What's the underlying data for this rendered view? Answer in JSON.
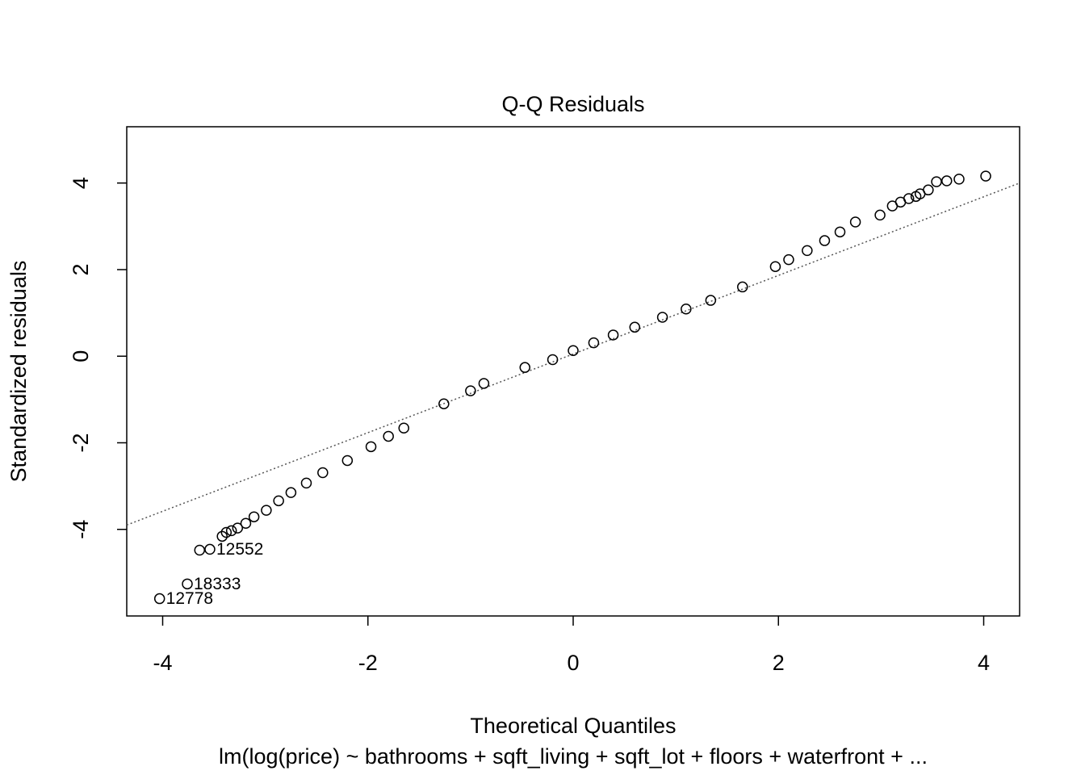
{
  "chart_data": {
    "type": "scatter",
    "title": "Q-Q Residuals",
    "x_label": "Theoretical Quantiles",
    "subtitle": "lm(log(price) ~ bathrooms + sqft_living + sqft_lot + floors + waterfront +  ...",
    "y_label": "Standardized residuals",
    "x": [
      -4.03,
      -3.76,
      -3.64,
      -3.54,
      -3.42,
      -3.38,
      -3.33,
      -3.27,
      -3.19,
      -3.11,
      -2.99,
      -2.87,
      -2.75,
      -2.6,
      -2.44,
      -2.2,
      -1.97,
      -1.8,
      -1.65,
      -1.26,
      -1.0,
      -0.87,
      -0.47,
      -0.2,
      0,
      0.2,
      0.39,
      0.6,
      0.87,
      1.1,
      1.34,
      1.65,
      1.97,
      2.1,
      2.28,
      2.45,
      2.6,
      2.75,
      2.99,
      3.11,
      3.19,
      3.27,
      3.34,
      3.38,
      3.46,
      3.54,
      3.64,
      3.76,
      4.02
    ],
    "y": [
      -5.6,
      -5.26,
      -4.48,
      -4.46,
      -4.16,
      -4.07,
      -4.03,
      -3.97,
      -3.86,
      -3.71,
      -3.56,
      -3.34,
      -3.15,
      -2.93,
      -2.69,
      -2.41,
      -2.09,
      -1.85,
      -1.66,
      -1.1,
      -0.8,
      -0.63,
      -0.26,
      -0.08,
      0.13,
      0.31,
      0.49,
      0.67,
      0.9,
      1.09,
      1.29,
      1.6,
      2.07,
      2.23,
      2.44,
      2.67,
      2.87,
      3.1,
      3.26,
      3.47,
      3.56,
      3.64,
      3.69,
      3.75,
      3.84,
      4.03,
      4.05,
      4.09,
      4.16
    ],
    "point_labels": [
      "12778",
      "18333",
      null,
      "12552",
      null,
      null,
      null,
      null,
      null,
      null,
      null,
      null,
      null,
      null,
      null,
      null,
      null,
      null,
      null,
      null,
      null,
      null,
      null,
      null,
      null,
      null,
      null,
      null,
      null,
      null,
      null,
      null,
      null,
      null,
      null,
      null,
      null,
      null,
      null,
      null,
      null,
      null,
      null,
      null,
      null,
      null,
      null,
      null,
      null
    ],
    "qqline": {
      "x": [
        -4.35,
        4.35
      ],
      "y": [
        -3.9,
        4.0
      ]
    },
    "color": "#000000",
    "xlim": [
      -4.35,
      4.35
    ],
    "ylim": [
      -6.0,
      5.3
    ],
    "xticks": [
      -4,
      -2,
      0,
      2,
      4
    ],
    "yticks": [
      -4,
      -2,
      0,
      2,
      4
    ]
  }
}
